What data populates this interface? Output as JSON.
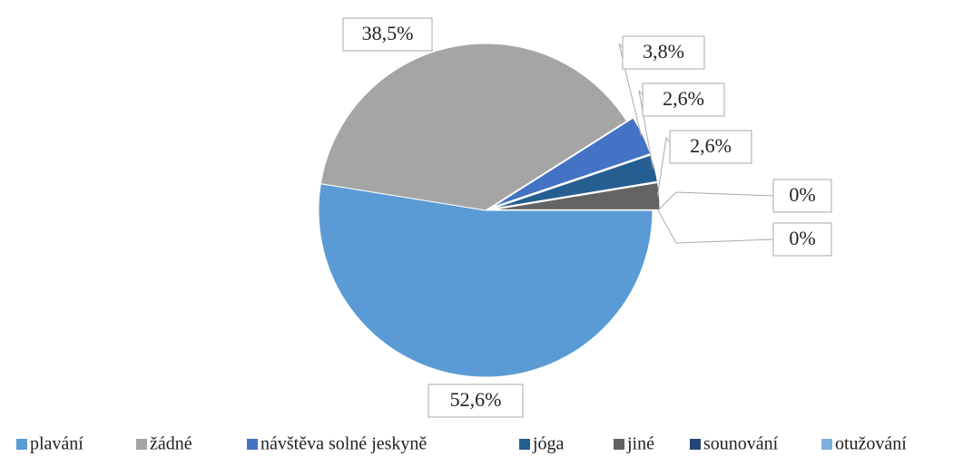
{
  "chart_data": {
    "type": "pie",
    "categories": [
      "plavání",
      "žádné",
      "návštěva solné jeskyně",
      "jóga",
      "jiné",
      "sounování",
      "otužování"
    ],
    "values": [
      52.6,
      38.5,
      3.8,
      2.6,
      2.6,
      0,
      0
    ],
    "value_labels": [
      "52,6%",
      "38,5%",
      "3,8%",
      "2,6%",
      "2,6%",
      "0%",
      "0%"
    ],
    "colors": [
      "#5b9bd5",
      "#a5a5a5",
      "#4472c4",
      "#255e91",
      "#636363",
      "#264478",
      "#7cafdd"
    ],
    "legend": "bottom"
  }
}
